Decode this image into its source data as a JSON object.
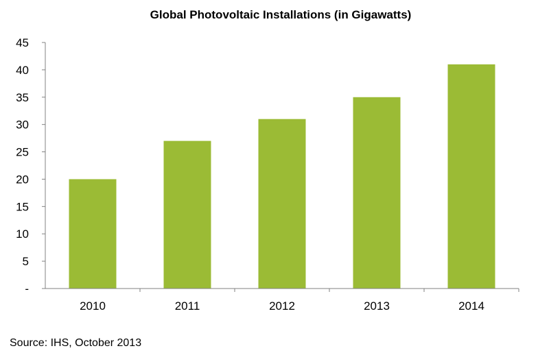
{
  "chart_data": {
    "type": "bar",
    "title": "Global Photovoltaic Installations (in Gigawatts)",
    "xlabel": "",
    "ylabel": "",
    "categories": [
      "2010",
      "2011",
      "2012",
      "2013",
      "2014"
    ],
    "values": [
      20,
      27,
      31,
      35,
      41
    ],
    "ylim": [
      0,
      45
    ],
    "yticks": [
      0,
      5,
      10,
      15,
      20,
      25,
      30,
      35,
      40,
      45
    ],
    "ytick_labels": [
      "-",
      "5",
      "10",
      "15",
      "20",
      "25",
      "30",
      "35",
      "40",
      "45"
    ],
    "grid": false,
    "legend": "none",
    "bar_color": "#9bbb35",
    "axis_color": "#808080",
    "source": "Source: IHS, October 2013"
  }
}
